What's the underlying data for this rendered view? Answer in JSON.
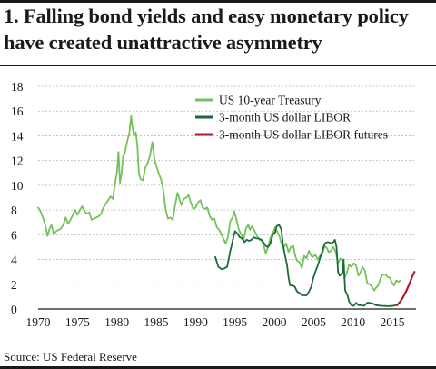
{
  "title": "1. Falling bond yields and easy monetary policy have created unattractive asymmetry",
  "source": "Source: US Federal Reserve",
  "chart_data": {
    "type": "line",
    "title": "1. Falling bond yields and easy monetary policy have created unattractive asymmetry",
    "xlabel": "",
    "ylabel": "",
    "xlim": [
      1970,
      2018
    ],
    "ylim": [
      0,
      18
    ],
    "x_ticks": [
      1970,
      1975,
      1980,
      1985,
      1990,
      1995,
      2000,
      2005,
      2010,
      2015
    ],
    "y_ticks": [
      0,
      2,
      4,
      6,
      8,
      10,
      12,
      14,
      16,
      18
    ],
    "grid": "horizontal",
    "legend_position": "top-right",
    "series": [
      {
        "name": "US 10-year Treasury",
        "color": "#72c25a",
        "points": [
          [
            1970.0,
            8.2
          ],
          [
            1970.3,
            7.9
          ],
          [
            1970.6,
            7.4
          ],
          [
            1970.9,
            6.8
          ],
          [
            1971.2,
            5.9
          ],
          [
            1971.4,
            6.4
          ],
          [
            1971.7,
            6.8
          ],
          [
            1972.0,
            6.0
          ],
          [
            1972.3,
            6.3
          ],
          [
            1972.6,
            6.4
          ],
          [
            1972.9,
            6.5
          ],
          [
            1973.2,
            6.8
          ],
          [
            1973.5,
            7.4
          ],
          [
            1973.8,
            6.9
          ],
          [
            1974.1,
            7.2
          ],
          [
            1974.4,
            7.6
          ],
          [
            1974.7,
            8.0
          ],
          [
            1975.0,
            7.6
          ],
          [
            1975.3,
            8.0
          ],
          [
            1975.6,
            8.3
          ],
          [
            1975.9,
            7.9
          ],
          [
            1976.2,
            7.7
          ],
          [
            1976.5,
            7.8
          ],
          [
            1976.8,
            7.2
          ],
          [
            1977.1,
            7.3
          ],
          [
            1977.4,
            7.4
          ],
          [
            1977.7,
            7.5
          ],
          [
            1978.0,
            7.7
          ],
          [
            1978.3,
            8.2
          ],
          [
            1978.6,
            8.5
          ],
          [
            1978.9,
            8.8
          ],
          [
            1979.2,
            9.1
          ],
          [
            1979.5,
            8.9
          ],
          [
            1979.8,
            10.3
          ],
          [
            1980.0,
            11.0
          ],
          [
            1980.2,
            12.7
          ],
          [
            1980.4,
            10.2
          ],
          [
            1980.6,
            11.0
          ],
          [
            1980.8,
            12.4
          ],
          [
            1981.0,
            12.6
          ],
          [
            1981.3,
            13.5
          ],
          [
            1981.6,
            14.3
          ],
          [
            1981.8,
            15.6
          ],
          [
            1982.0,
            14.6
          ],
          [
            1982.2,
            14.0
          ],
          [
            1982.4,
            14.3
          ],
          [
            1982.6,
            13.2
          ],
          [
            1982.8,
            11.0
          ],
          [
            1983.0,
            10.5
          ],
          [
            1983.3,
            10.4
          ],
          [
            1983.6,
            11.4
          ],
          [
            1983.9,
            11.8
          ],
          [
            1984.2,
            12.4
          ],
          [
            1984.5,
            13.5
          ],
          [
            1984.8,
            12.0
          ],
          [
            1985.0,
            11.6
          ],
          [
            1985.3,
            11.0
          ],
          [
            1985.6,
            10.5
          ],
          [
            1985.9,
            9.6
          ],
          [
            1986.2,
            8.0
          ],
          [
            1986.5,
            7.3
          ],
          [
            1986.8,
            7.4
          ],
          [
            1987.1,
            7.2
          ],
          [
            1987.4,
            8.4
          ],
          [
            1987.7,
            9.4
          ],
          [
            1987.9,
            9.0
          ],
          [
            1988.2,
            8.4
          ],
          [
            1988.5,
            8.9
          ],
          [
            1988.8,
            9.0
          ],
          [
            1989.1,
            9.2
          ],
          [
            1989.4,
            8.6
          ],
          [
            1989.7,
            8.1
          ],
          [
            1990.0,
            8.2
          ],
          [
            1990.3,
            8.6
          ],
          [
            1990.6,
            8.8
          ],
          [
            1990.9,
            8.2
          ],
          [
            1991.2,
            8.1
          ],
          [
            1991.5,
            8.2
          ],
          [
            1991.8,
            7.5
          ],
          [
            1992.1,
            7.2
          ],
          [
            1992.4,
            7.3
          ],
          [
            1992.7,
            6.6
          ],
          [
            1993.0,
            6.4
          ],
          [
            1993.3,
            6.0
          ],
          [
            1993.6,
            5.6
          ],
          [
            1993.8,
            5.3
          ],
          [
            1994.1,
            5.8
          ],
          [
            1994.4,
            7.1
          ],
          [
            1994.7,
            7.4
          ],
          [
            1994.9,
            7.9
          ],
          [
            1995.2,
            7.2
          ],
          [
            1995.5,
            6.4
          ],
          [
            1995.8,
            6.0
          ],
          [
            1996.1,
            5.6
          ],
          [
            1996.4,
            6.5
          ],
          [
            1996.7,
            6.8
          ],
          [
            1996.9,
            6.4
          ],
          [
            1997.2,
            6.7
          ],
          [
            1997.5,
            6.3
          ],
          [
            1997.8,
            5.9
          ],
          [
            1998.1,
            5.6
          ],
          [
            1998.4,
            5.6
          ],
          [
            1998.7,
            5.0
          ],
          [
            1998.9,
            4.5
          ],
          [
            1999.2,
            5.0
          ],
          [
            1999.5,
            5.8
          ],
          [
            1999.8,
            6.1
          ],
          [
            2000.1,
            6.6
          ],
          [
            2000.4,
            6.2
          ],
          [
            2000.7,
            5.8
          ],
          [
            2000.9,
            5.3
          ],
          [
            2001.2,
            5.0
          ],
          [
            2001.5,
            5.3
          ],
          [
            2001.8,
            4.6
          ],
          [
            2002.1,
            5.0
          ],
          [
            2002.4,
            5.1
          ],
          [
            2002.7,
            4.2
          ],
          [
            2002.9,
            3.9
          ],
          [
            2003.2,
            3.8
          ],
          [
            2003.5,
            3.3
          ],
          [
            2003.8,
            4.3
          ],
          [
            2004.1,
            4.1
          ],
          [
            2004.4,
            4.7
          ],
          [
            2004.7,
            4.3
          ],
          [
            2004.9,
            4.2
          ],
          [
            2005.2,
            4.4
          ],
          [
            2005.5,
            4.0
          ],
          [
            2005.8,
            4.3
          ],
          [
            2006.1,
            4.5
          ],
          [
            2006.4,
            5.1
          ],
          [
            2006.7,
            4.9
          ],
          [
            2006.9,
            4.6
          ],
          [
            2007.2,
            4.7
          ],
          [
            2007.5,
            5.0
          ],
          [
            2007.8,
            4.6
          ],
          [
            2008.1,
            3.7
          ],
          [
            2008.4,
            4.1
          ],
          [
            2008.7,
            3.9
          ],
          [
            2008.9,
            2.5
          ],
          [
            2009.2,
            2.9
          ],
          [
            2009.5,
            3.6
          ],
          [
            2009.8,
            3.4
          ],
          [
            2010.1,
            3.7
          ],
          [
            2010.4,
            3.5
          ],
          [
            2010.7,
            2.7
          ],
          [
            2010.9,
            2.9
          ],
          [
            2011.2,
            3.4
          ],
          [
            2011.5,
            3.1
          ],
          [
            2011.8,
            2.1
          ],
          [
            2012.1,
            2.0
          ],
          [
            2012.4,
            1.8
          ],
          [
            2012.7,
            1.5
          ],
          [
            2012.9,
            1.7
          ],
          [
            2013.2,
            1.9
          ],
          [
            2013.5,
            2.5
          ],
          [
            2013.8,
            2.8
          ],
          [
            2014.1,
            2.8
          ],
          [
            2014.4,
            2.6
          ],
          [
            2014.7,
            2.5
          ],
          [
            2014.9,
            2.2
          ],
          [
            2015.2,
            1.9
          ],
          [
            2015.5,
            2.3
          ],
          [
            2015.8,
            2.2
          ],
          [
            2016.0,
            2.3
          ]
        ]
      },
      {
        "name": "3-month US dollar LIBOR",
        "color": "#1b6b3a",
        "points": [
          [
            1992.5,
            4.2
          ],
          [
            1992.7,
            3.8
          ],
          [
            1992.9,
            3.4
          ],
          [
            1993.1,
            3.3
          ],
          [
            1993.4,
            3.2
          ],
          [
            1993.7,
            3.3
          ],
          [
            1994.0,
            3.4
          ],
          [
            1994.2,
            4.0
          ],
          [
            1994.4,
            4.7
          ],
          [
            1994.6,
            5.2
          ],
          [
            1994.8,
            5.8
          ],
          [
            1995.0,
            6.3
          ],
          [
            1995.3,
            6.1
          ],
          [
            1995.6,
            5.8
          ],
          [
            1995.9,
            5.7
          ],
          [
            1996.2,
            5.4
          ],
          [
            1996.5,
            5.6
          ],
          [
            1996.8,
            5.5
          ],
          [
            1997.1,
            5.6
          ],
          [
            1997.4,
            5.8
          ],
          [
            1997.7,
            5.7
          ],
          [
            1998.0,
            5.7
          ],
          [
            1998.3,
            5.6
          ],
          [
            1998.6,
            5.4
          ],
          [
            1998.9,
            5.1
          ],
          [
            1999.2,
            5.0
          ],
          [
            1999.5,
            5.3
          ],
          [
            1999.8,
            6.0
          ],
          [
            2000.1,
            6.2
          ],
          [
            2000.3,
            6.7
          ],
          [
            2000.6,
            6.8
          ],
          [
            2000.9,
            6.4
          ],
          [
            2001.1,
            5.2
          ],
          [
            2001.3,
            4.5
          ],
          [
            2001.6,
            3.6
          ],
          [
            2001.8,
            2.6
          ],
          [
            2002.0,
            1.9
          ],
          [
            2002.3,
            1.9
          ],
          [
            2002.6,
            1.8
          ],
          [
            2002.9,
            1.4
          ],
          [
            2003.2,
            1.3
          ],
          [
            2003.5,
            1.1
          ],
          [
            2003.8,
            1.1
          ],
          [
            2004.1,
            1.1
          ],
          [
            2004.4,
            1.4
          ],
          [
            2004.7,
            1.8
          ],
          [
            2004.9,
            2.4
          ],
          [
            2005.2,
            3.0
          ],
          [
            2005.5,
            3.5
          ],
          [
            2005.8,
            4.1
          ],
          [
            2006.1,
            4.7
          ],
          [
            2006.4,
            5.3
          ],
          [
            2006.7,
            5.4
          ],
          [
            2006.9,
            5.4
          ],
          [
            2007.2,
            5.3
          ],
          [
            2007.5,
            5.4
          ],
          [
            2007.7,
            5.6
          ],
          [
            2007.9,
            5.0
          ],
          [
            2008.1,
            3.0
          ],
          [
            2008.3,
            2.7
          ],
          [
            2008.5,
            2.8
          ],
          [
            2008.7,
            3.0
          ],
          [
            2008.8,
            4.0
          ],
          [
            2009.0,
            1.5
          ],
          [
            2009.3,
            1.1
          ],
          [
            2009.5,
            0.6
          ],
          [
            2009.8,
            0.3
          ],
          [
            2010.1,
            0.25
          ],
          [
            2010.4,
            0.5
          ],
          [
            2010.7,
            0.3
          ],
          [
            2011.0,
            0.3
          ],
          [
            2011.4,
            0.26
          ],
          [
            2011.8,
            0.5
          ],
          [
            2012.1,
            0.5
          ],
          [
            2012.5,
            0.45
          ],
          [
            2012.9,
            0.31
          ],
          [
            2013.3,
            0.28
          ],
          [
            2013.7,
            0.25
          ],
          [
            2014.1,
            0.24
          ],
          [
            2014.5,
            0.23
          ],
          [
            2014.9,
            0.24
          ],
          [
            2015.3,
            0.28
          ],
          [
            2015.6,
            0.31
          ]
        ]
      },
      {
        "name": "3-month US dollar LIBOR futures",
        "color": "#b31b34",
        "points": [
          [
            2015.6,
            0.31
          ],
          [
            2016.0,
            0.6
          ],
          [
            2016.4,
            1.0
          ],
          [
            2016.8,
            1.5
          ],
          [
            2017.2,
            2.1
          ],
          [
            2017.5,
            2.6
          ],
          [
            2017.8,
            3.0
          ]
        ]
      }
    ]
  }
}
